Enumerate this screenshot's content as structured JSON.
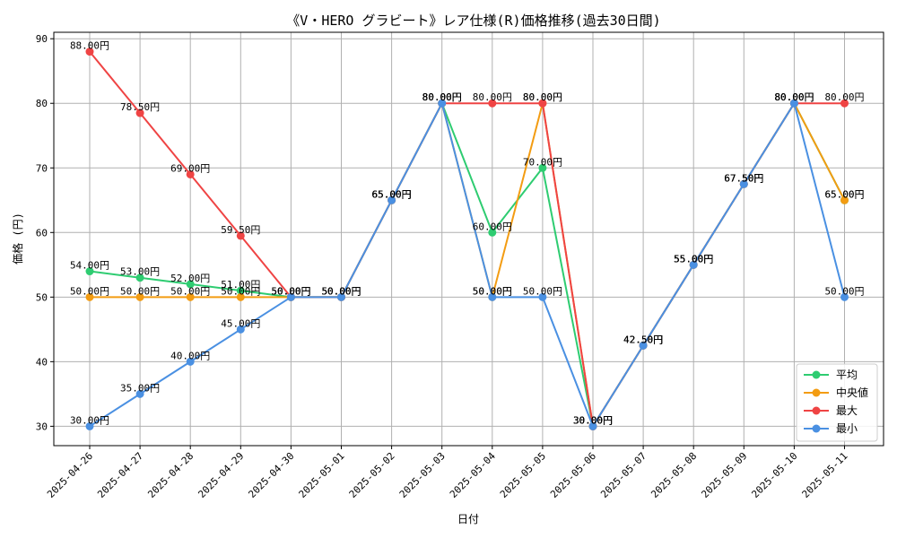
{
  "chart_data": {
    "type": "line",
    "title": "《V・HERO グラビート》レア仕様(R)価格推移(過去30日間)",
    "xlabel": "日付",
    "ylabel": "価格 (円)",
    "ylim": [
      27,
      91
    ],
    "yticks": [
      30,
      40,
      50,
      60,
      70,
      80,
      90
    ],
    "grid": true,
    "legend_position": "lower-right",
    "x": [
      "2025-04-26",
      "2025-04-27",
      "2025-04-28",
      "2025-04-29",
      "2025-04-30",
      "2025-05-01",
      "2025-05-02",
      "2025-05-03",
      "2025-05-04",
      "2025-05-05",
      "2025-05-06",
      "2025-05-07",
      "2025-05-08",
      "2025-05-09",
      "2025-05-10",
      "2025-05-11"
    ],
    "value_suffix": "円",
    "series": [
      {
        "name": "平均",
        "color": "#2ecc71",
        "values": [
          54,
          53,
          52,
          51,
          50,
          50,
          65,
          80,
          60,
          70,
          30,
          42.5,
          55,
          67.5,
          80,
          65
        ]
      },
      {
        "name": "中央値",
        "color": "#f39c12",
        "values": [
          50,
          50,
          50,
          50,
          50,
          50,
          65,
          80,
          50,
          80,
          30,
          42.5,
          55,
          67.5,
          80,
          65
        ]
      },
      {
        "name": "最大",
        "color": "#ef4444",
        "values": [
          88,
          78.5,
          69,
          59.5,
          50,
          50,
          65,
          80,
          80,
          80,
          30,
          42.5,
          55,
          67.5,
          80,
          80
        ]
      },
      {
        "name": "最小",
        "color": "#4a90e2",
        "values": [
          30,
          35,
          40,
          45,
          50,
          50,
          65,
          80,
          50,
          50,
          30,
          42.5,
          55,
          67.5,
          80,
          50
        ]
      }
    ]
  }
}
